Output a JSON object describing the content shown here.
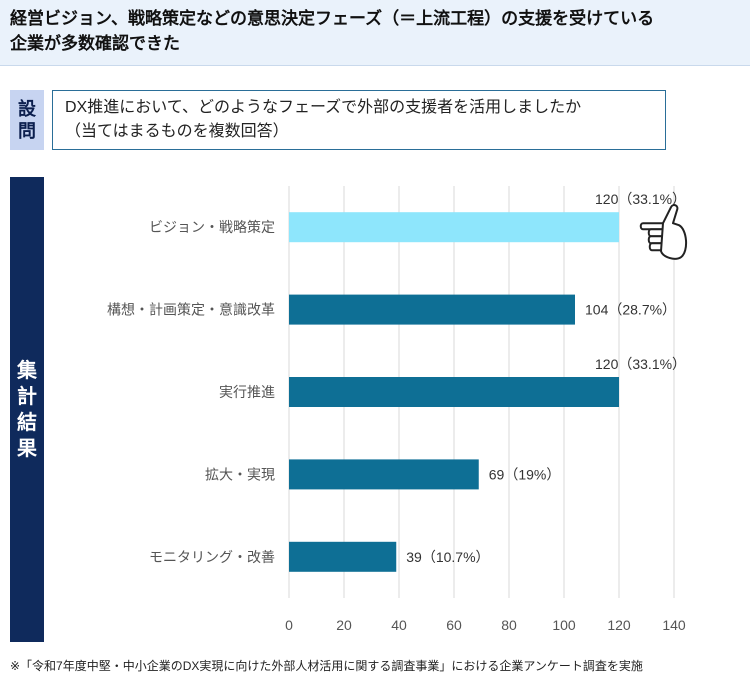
{
  "headline": {
    "line1": "経営ビジョン、戦略策定などの意思決定フェーズ（＝上流工程）の支援を受けている",
    "line2": "企業が多数確認できた"
  },
  "question": {
    "label_chars": [
      "設",
      "問"
    ],
    "line1": "DX推進において、どのようなフェーズで外部の支援者を活用しましたか",
    "line2": "（当てはまるものを複数回答）"
  },
  "side_label_chars": [
    "集",
    "計",
    "結",
    "果"
  ],
  "chart_data": {
    "type": "bar",
    "orientation": "horizontal",
    "categories": [
      "ビジョン・戦略策定",
      "構想・計画策定・意識改革",
      "実行推進",
      "拡大・実現",
      "モニタリング・改善"
    ],
    "values": [
      120,
      104,
      120,
      69,
      39
    ],
    "data_labels": [
      "120（33.1%）",
      "104（28.7%）",
      "120（33.1%）",
      "69（19%）",
      "39（10.7%）"
    ],
    "xlim": [
      0,
      140
    ],
    "xticks": [
      0,
      20,
      40,
      60,
      80,
      100,
      120,
      140
    ],
    "grid": true,
    "colors": {
      "highlight": "#8ee6fc",
      "default": "#0e6f95",
      "grid": "#d9d9d9"
    },
    "highlight_index": 0,
    "annotation_icon": "pointing-hand-icon"
  },
  "footnote": "※「令和7年度中堅・中小企業のDX実現に向けた外部人材活用に関する調査事業」における企業アンケート調査を実施"
}
